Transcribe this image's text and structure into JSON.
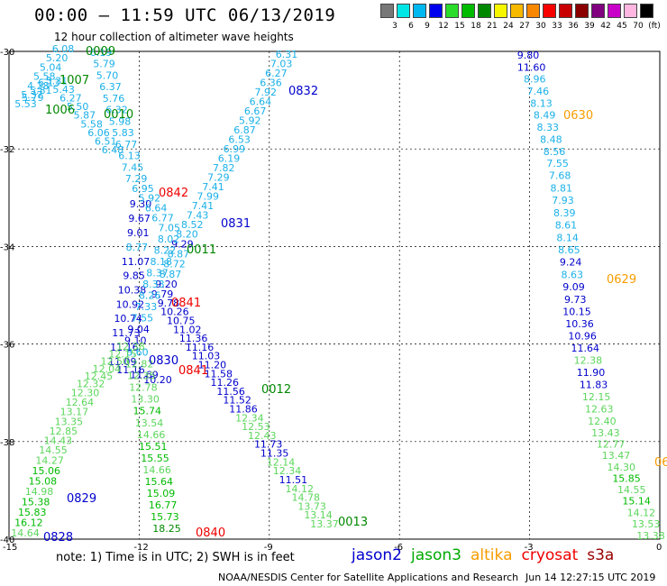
{
  "title": "00:00 – 11:59 UTC 06/13/2019",
  "subtitle": "12 hour collection of altimeter wave heights",
  "scale": {
    "labels": [
      "3",
      "6",
      "9",
      "12",
      "15",
      "18",
      "21",
      "24",
      "27",
      "30",
      "33",
      "36",
      "39",
      "42",
      "45",
      "70",
      "(ft)"
    ],
    "colors": [
      "#777777",
      "#00e5e5",
      "#00b8f0",
      "#0000ee",
      "#2bdc2b",
      "#00bb00",
      "#008800",
      "#f7f700",
      "#f7b800",
      "#f78800",
      "#f70000",
      "#c80000",
      "#8b0000",
      "#800080",
      "#c800c8",
      "#ffb6e0",
      "#000000"
    ]
  },
  "axes": {
    "lat_labels": [
      "-30",
      "-32",
      "-34",
      "-36",
      "-38",
      "-40"
    ],
    "lon_labels": [
      "-15",
      "-12",
      "-9",
      "-6",
      "-3",
      "0"
    ]
  },
  "note": "note:  1) Time is in UTC;  2) SWH is in feet",
  "satellites": [
    {
      "name": "jason2",
      "color": "#0000cc"
    },
    {
      "name": "jason3",
      "color": "#00aa00"
    },
    {
      "name": "altika",
      "color": "#f79c00"
    },
    {
      "name": "cryosat",
      "color": "#ee0000"
    },
    {
      "name": "s3a",
      "color": "#990000"
    }
  ],
  "credit": "NOAA/NESDIS Center for Satellite Applications and Research",
  "timestamp": "Jun 14 12:27:15 UTC 2019",
  "tracks": [
    {
      "name": "0832",
      "color": "#0000cc",
      "values": [
        "6.31",
        "7.03",
        "6.27",
        "6.36",
        "7.92",
        "6.64",
        "6.67",
        "5.92",
        "6.87",
        "6.53",
        "6.99",
        "6.19",
        "7.82",
        "7.29",
        "7.41",
        "7.99",
        "7.41",
        "7.43",
        "8.52",
        "8.20",
        "9.29",
        "8.87",
        "8.72",
        "8.87",
        "9.20",
        "9.79",
        "9.78",
        "10.26",
        "10.75",
        "11.02",
        "11.36",
        "11.16",
        "11.03",
        "11.20",
        "11.58",
        "11.26",
        "11.56",
        "11.52",
        "11.86",
        "12.34",
        "12.53",
        "12.43",
        "11.73",
        "11.35",
        "12.14",
        "12.34",
        "11.51",
        "14.12",
        "14.78",
        "13.73",
        "13.14",
        "13.37"
      ]
    },
    {
      "name": "0831",
      "color": "#0000cc",
      "values": [
        "9.30",
        "9.67",
        "9.01",
        "8.77",
        "11.07",
        "9.85",
        "10.38",
        "10.92",
        "10.74",
        "11.73",
        "11.16",
        "11.09",
        "11.16",
        "11.69",
        "10.20"
      ]
    },
    {
      "name": "0630",
      "color": "#f79c00",
      "values": [
        "9.80",
        "11.60",
        "8.96",
        "7.46",
        "8.13",
        "8.49",
        "8.33",
        "8.48",
        "8.56",
        "7.55",
        "7.68",
        "8.81",
        "7.93",
        "8.39",
        "8.61",
        "8.14",
        "8.65",
        "9.24",
        "8.63",
        "9.09",
        "9.73",
        "10.15",
        "10.36",
        "10.96",
        "11.64",
        "12.38",
        "11.90",
        "11.83",
        "12.15",
        "12.63",
        "12.40",
        "13.43",
        "12.77",
        "13.47",
        "14.30",
        "15.85",
        "14.55",
        "15.14",
        "14.12",
        "13.53",
        "13.38"
      ]
    },
    {
      "name": "0010",
      "color": "#00aa00",
      "values": [
        "6.19",
        "5.79",
        "5.70",
        "6.37",
        "5.76",
        "6.32",
        "5.98",
        "5.83",
        "6.77",
        "6.13",
        "7.45",
        "7.29",
        "6.95",
        "5.92",
        "6.64",
        "6.77",
        "7.05",
        "8.02",
        "8.22",
        "8.18",
        "8.37",
        "8.33",
        "8.26",
        "7.33",
        "7.55",
        "9.04",
        "9.10",
        "8.60",
        "12.82",
        "12.35",
        "12.78",
        "13.30",
        "15.74",
        "13.54",
        "14.66",
        "15.51",
        "15.55",
        "14.66",
        "15.64",
        "15.09",
        "16.77",
        "15.73",
        "18.25"
      ]
    },
    {
      "name": "1006",
      "color": "#00aa00",
      "values": [
        "6.08",
        "5.20",
        "5.04",
        "5.58",
        "4.28",
        "5.37",
        "5.53",
        "5.79",
        "5.81",
        "6.13",
        "5.31",
        "5.43",
        "6.27",
        "5.50",
        "5.87",
        "5.58",
        "6.06",
        "6.51",
        "6.48"
      ]
    },
    {
      "name": "0829",
      "color": "#00aa00",
      "values": [
        "12.38",
        "12.15",
        "12.50",
        "12.04",
        "12.45",
        "12.32",
        "12.30",
        "12.64",
        "13.17",
        "13.35",
        "12.85",
        "14.43",
        "14.55",
        "14.27",
        "15.06",
        "15.08",
        "14.98",
        "15.38",
        "15.83",
        "16.12",
        "14.64"
      ]
    }
  ],
  "track_labels": [
    {
      "text": "0009",
      "color": "#008800"
    },
    {
      "text": "1007",
      "color": "#008800"
    },
    {
      "text": "1006",
      "color": "#008800"
    },
    {
      "text": "0010",
      "color": "#008800"
    },
    {
      "text": "0832",
      "color": "#0000cc"
    },
    {
      "text": "0630",
      "color": "#f79c00"
    },
    {
      "text": "0842",
      "color": "#ee0000"
    },
    {
      "text": "0831",
      "color": "#0000cc"
    },
    {
      "text": "0011",
      "color": "#008800"
    },
    {
      "text": "0629",
      "color": "#f79c00"
    },
    {
      "text": "0841",
      "color": "#ee0000"
    },
    {
      "text": "0830",
      "color": "#0000cc"
    },
    {
      "text": "0841",
      "color": "#ee0000"
    },
    {
      "text": "0012",
      "color": "#008800"
    },
    {
      "text": "0829",
      "color": "#0000cc"
    },
    {
      "text": "0828",
      "color": "#0000cc"
    },
    {
      "text": "0840",
      "color": "#ee0000"
    },
    {
      "text": "0013",
      "color": "#008800"
    },
    {
      "text": "06",
      "color": "#f79c00"
    }
  ]
}
